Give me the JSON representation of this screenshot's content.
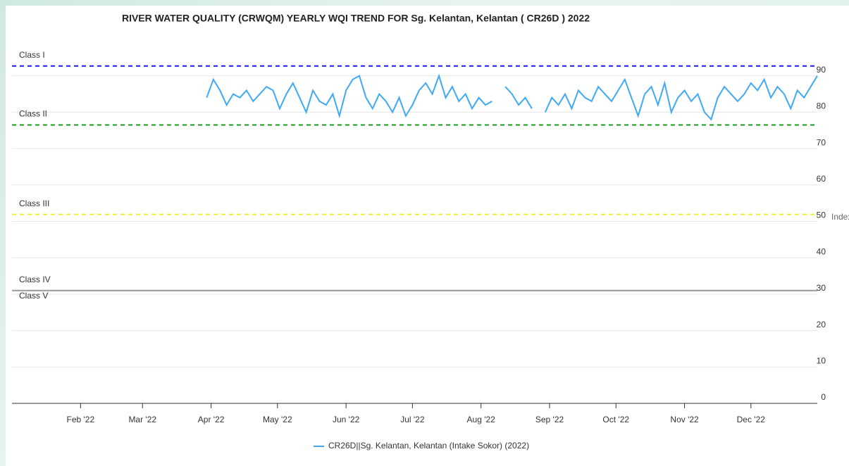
{
  "chart_data": {
    "type": "line",
    "title": "RIVER WATER QUALITY (CRWQM) YEARLY WQI TREND FOR Sg. Kelantan, Kelantan ( CR26D ) 2022",
    "y_label": "Index",
    "x": [
      89,
      92,
      95,
      98,
      101,
      104,
      107,
      110,
      113,
      116,
      119,
      122,
      125,
      128,
      131,
      134,
      137,
      140,
      143,
      146,
      149,
      152,
      155,
      158,
      161,
      164,
      167,
      170,
      173,
      176,
      179,
      182,
      185,
      188,
      191,
      194,
      197,
      200,
      203,
      206,
      209,
      212,
      215,
      218,
      221,
      224,
      227,
      230,
      233,
      236,
      239,
      242,
      245,
      248,
      251,
      254,
      257,
      260,
      263,
      266,
      269,
      272,
      275,
      278,
      281,
      284,
      287,
      290,
      293,
      296,
      299,
      302,
      305,
      308,
      311,
      314,
      317,
      320,
      323,
      326,
      329,
      332,
      335,
      338,
      341,
      344,
      347,
      350,
      353,
      356,
      359,
      362,
      365
    ],
    "series": [
      {
        "name": "CR26D||Sg. Kelantan, Kelantan (Intake Sokor) (2022)",
        "color": "#3fa9f5",
        "values": [
          84,
          89,
          86,
          82,
          85,
          84,
          86,
          83,
          85,
          87,
          86,
          81,
          85,
          88,
          84,
          80,
          86,
          83,
          82,
          85,
          79,
          86,
          89,
          90,
          84,
          81,
          85,
          83,
          80,
          84,
          79,
          82,
          86,
          88,
          85,
          90,
          84,
          87,
          83,
          85,
          81,
          84,
          82,
          83,
          null,
          87,
          85,
          82,
          84,
          81,
          null,
          80,
          84,
          82,
          85,
          81,
          86,
          84,
          83,
          87,
          85,
          83,
          86,
          89,
          84,
          79,
          85,
          87,
          82,
          88,
          80,
          84,
          86,
          83,
          85,
          80,
          78,
          84,
          87,
          85,
          83,
          85,
          88,
          86,
          89,
          84,
          87,
          85,
          81,
          86,
          84,
          87,
          90
        ]
      }
    ],
    "xlim": [
      1,
      365
    ],
    "xticks": [
      {
        "value": 32,
        "label": "Feb '22"
      },
      {
        "value": 60,
        "label": "Mar '22"
      },
      {
        "value": 91,
        "label": "Apr '22"
      },
      {
        "value": 121,
        "label": "May '22"
      },
      {
        "value": 152,
        "label": "Jun '22"
      },
      {
        "value": 182,
        "label": "Jul '22"
      },
      {
        "value": 213,
        "label": "Aug '22"
      },
      {
        "value": 244,
        "label": "Sep '22"
      },
      {
        "value": 274,
        "label": "Oct '22"
      },
      {
        "value": 305,
        "label": "Nov '22"
      },
      {
        "value": 335,
        "label": "Dec '22"
      }
    ],
    "ylim": [
      0,
      100
    ],
    "yticks": [
      0,
      10,
      20,
      30,
      40,
      50,
      60,
      70,
      80,
      90
    ],
    "grid": true,
    "thresholds": [
      {
        "value": 92.7,
        "color": "#1a1aff",
        "dashed": true,
        "label_above": "Class I"
      },
      {
        "value": 76.5,
        "color": "#1a9a1a",
        "dashed": true,
        "label_above": "Class II"
      },
      {
        "value": 51.9,
        "color": "#f0f030",
        "dashed": true,
        "label_above": "Class III"
      },
      {
        "value": 31,
        "color": "#999999",
        "dashed": false,
        "label_above": "Class IV",
        "label_below": "Class V"
      }
    ]
  }
}
